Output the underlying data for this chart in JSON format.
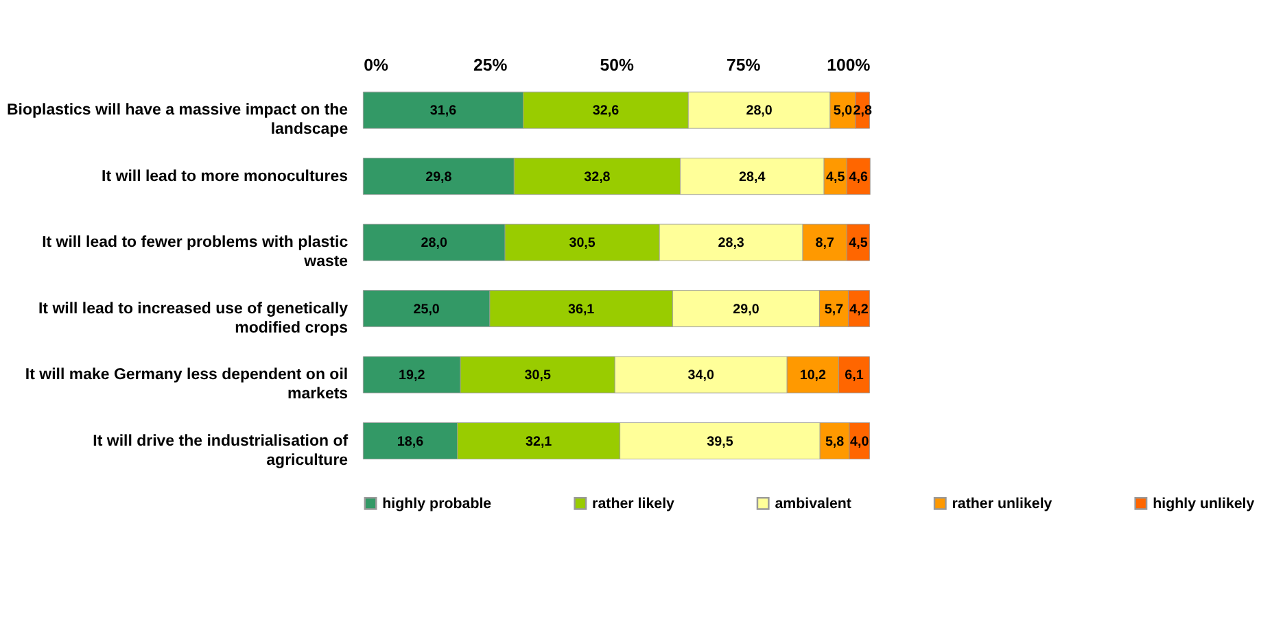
{
  "chart_data": {
    "type": "bar",
    "orientation": "horizontal",
    "stacked": true,
    "categories": [
      "Bioplastics will have a massive impact on the landscape",
      "It will lead to more monocultures",
      "It will lead to fewer problems with plastic waste",
      "It will lead to increased use of genetically modified crops",
      "It will make Germany less dependent on oil markets",
      "It will drive the industrialisation of agriculture"
    ],
    "xlim": [
      0,
      100
    ],
    "xticks": [
      {
        "value": 0,
        "label": "0%"
      },
      {
        "value": 25,
        "label": "25%"
      },
      {
        "value": 50,
        "label": "50%"
      },
      {
        "value": 75,
        "label": "75%"
      },
      {
        "value": 100,
        "label": "100%"
      }
    ],
    "grid": false,
    "legend": "bottom",
    "series": [
      {
        "name": "highly probable",
        "color": "#339966",
        "values": [
          31.6,
          29.8,
          28.0,
          25.0,
          19.2,
          18.6
        ],
        "value_labels": [
          "31,6",
          "29,8",
          "28,0",
          "25,0",
          "19,2",
          "18,6"
        ]
      },
      {
        "name": "rather likely",
        "color": "#99cc00",
        "values": [
          32.6,
          32.8,
          30.5,
          36.1,
          30.5,
          32.1
        ],
        "value_labels": [
          "32,6",
          "32,8",
          "30,5",
          "36,1",
          "30,5",
          "32,1"
        ]
      },
      {
        "name": "ambivalent",
        "color": "#ffff99",
        "values": [
          28.0,
          28.4,
          28.3,
          29.0,
          34.0,
          39.5
        ],
        "value_labels": [
          "28,0",
          "28,4",
          "28,3",
          "29,0",
          "34,0",
          "39,5"
        ]
      },
      {
        "name": "rather unlikely",
        "color": "#ff9900",
        "values": [
          5.0,
          4.5,
          8.7,
          5.7,
          10.2,
          5.8
        ],
        "value_labels": [
          "5,0",
          "4,5",
          "8,7",
          "5,7",
          "10,2",
          "5,8"
        ]
      },
      {
        "name": "highly unlikely",
        "color": "#ff6600",
        "values": [
          2.8,
          4.6,
          4.5,
          4.2,
          6.1,
          4.0
        ],
        "value_labels": [
          "2,8",
          "4,6",
          "4,5",
          "4,2",
          "6,1",
          "4,0"
        ]
      }
    ]
  }
}
